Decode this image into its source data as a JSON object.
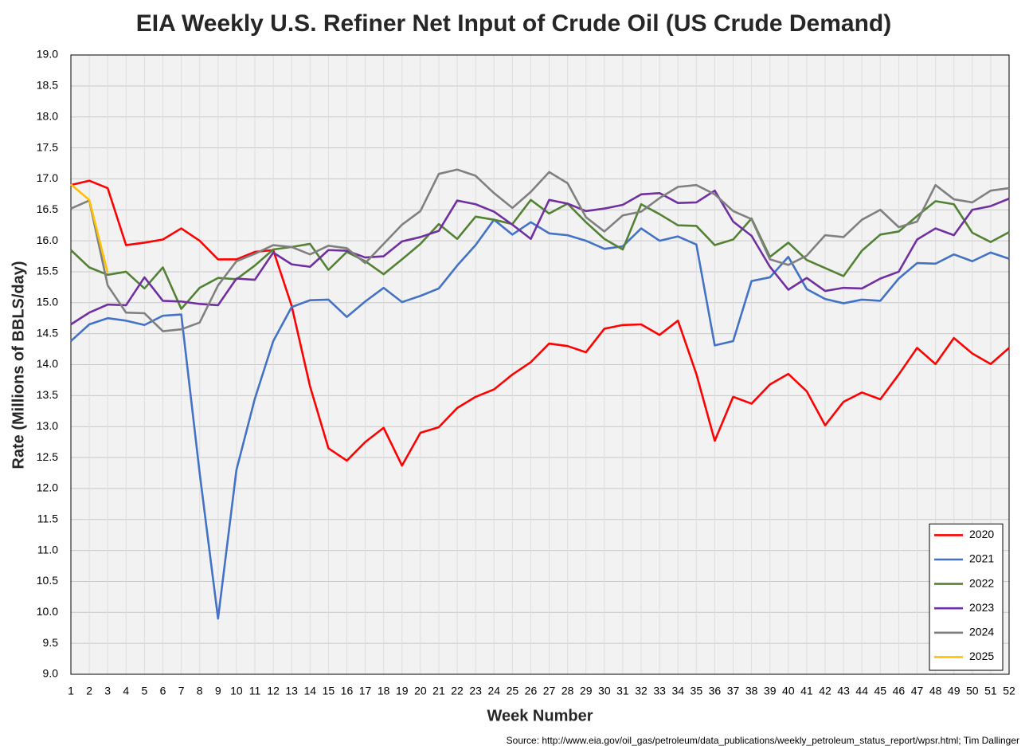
{
  "chart_data": {
    "type": "line",
    "title": "EIA Weekly U.S. Refiner Net Input of Crude Oil (US Crude Demand)",
    "x_label": "Week Number",
    "y_label": "Rate (Millions of BBLS/day)",
    "source": "Source: http://www.eia.gov/oil_gas/petroleum/data_publications/weekly_petroleum_status_report/wpsr.html; Tim Dallinger",
    "x": [
      1,
      2,
      3,
      4,
      5,
      6,
      7,
      8,
      9,
      10,
      11,
      12,
      13,
      14,
      15,
      16,
      17,
      18,
      19,
      20,
      21,
      22,
      23,
      24,
      25,
      26,
      27,
      28,
      29,
      30,
      31,
      32,
      33,
      34,
      35,
      36,
      37,
      38,
      39,
      40,
      41,
      42,
      43,
      44,
      45,
      46,
      47,
      48,
      49,
      50,
      51,
      52
    ],
    "xlim": [
      1,
      52
    ],
    "xticks": [
      1,
      2,
      3,
      4,
      5,
      6,
      7,
      8,
      9,
      10,
      11,
      12,
      13,
      14,
      15,
      16,
      17,
      18,
      19,
      20,
      21,
      22,
      23,
      24,
      25,
      26,
      27,
      28,
      29,
      30,
      31,
      32,
      33,
      34,
      35,
      36,
      37,
      38,
      39,
      40,
      41,
      42,
      43,
      44,
      45,
      46,
      47,
      48,
      49,
      50,
      51,
      52
    ],
    "ylim": [
      9,
      19
    ],
    "yticks": [
      {
        "value": 9,
        "label": "9.0"
      },
      9.5,
      {
        "value": 10,
        "label": "10.0"
      },
      10.5,
      {
        "value": 11,
        "label": "11.0"
      },
      11.5,
      {
        "value": 12,
        "label": "12.0"
      },
      12.5,
      {
        "value": 13,
        "label": "13.0"
      },
      13.5,
      {
        "value": 14,
        "label": "14.0"
      },
      14.5,
      {
        "value": 15,
        "label": "15.0"
      },
      15.5,
      {
        "value": 16,
        "label": "16.0"
      },
      16.5,
      {
        "value": 17,
        "label": "17.0"
      },
      17.5,
      {
        "value": 18,
        "label": "18.0"
      },
      18.5,
      {
        "value": 19,
        "label": "19.0"
      }
    ],
    "grid": true,
    "legend": "lower right",
    "series": [
      {
        "name": "2020",
        "color": "#ff0000",
        "values": [
          16.9,
          16.97,
          16.85,
          15.93,
          15.97,
          16.02,
          16.2,
          16.0,
          15.7,
          15.7,
          15.82,
          15.85,
          14.95,
          13.65,
          12.65,
          12.45,
          12.75,
          12.98,
          12.37,
          12.9,
          12.99,
          13.3,
          13.48,
          13.6,
          13.84,
          14.04,
          14.34,
          14.3,
          14.2,
          14.58,
          14.64,
          14.65,
          14.48,
          14.71,
          13.85,
          12.77,
          13.48,
          13.37,
          13.68,
          13.85,
          13.57,
          13.02,
          13.4,
          13.55,
          13.44,
          13.84,
          14.27,
          14.01,
          14.43,
          14.18,
          14.01,
          14.27
        ]
      },
      {
        "name": "2021",
        "color": "#4472c4",
        "values": [
          14.38,
          14.65,
          14.75,
          14.71,
          14.64,
          14.79,
          14.81,
          12.25,
          9.9,
          12.3,
          13.45,
          14.38,
          14.93,
          15.04,
          15.05,
          14.77,
          15.02,
          15.24,
          15.01,
          15.11,
          15.23,
          15.6,
          15.93,
          16.34,
          16.1,
          16.3,
          16.12,
          16.09,
          16.0,
          15.87,
          15.91,
          16.2,
          16.0,
          16.07,
          15.94,
          14.31,
          14.38,
          15.35,
          15.41,
          15.74,
          15.22,
          15.06,
          14.99,
          15.05,
          15.03,
          15.39,
          15.64,
          15.63,
          15.78,
          15.67,
          15.81,
          15.71
        ]
      },
      {
        "name": "2022",
        "color": "#548235",
        "values": [
          15.85,
          15.57,
          15.45,
          15.5,
          15.23,
          15.57,
          14.9,
          15.24,
          15.4,
          15.38,
          15.6,
          15.86,
          15.9,
          15.95,
          15.53,
          15.82,
          15.67,
          15.46,
          15.7,
          15.95,
          16.27,
          16.03,
          16.39,
          16.34,
          16.27,
          16.66,
          16.44,
          16.6,
          16.3,
          16.03,
          15.86,
          16.59,
          16.43,
          16.25,
          16.24,
          15.93,
          16.02,
          16.36,
          15.74,
          15.97,
          15.69,
          15.56,
          15.43,
          15.84,
          16.1,
          16.15,
          16.4,
          16.64,
          16.59,
          16.13,
          15.98,
          16.14
        ]
      },
      {
        "name": "2023",
        "color": "#7030a0",
        "values": [
          14.65,
          14.84,
          14.97,
          14.96,
          15.41,
          15.03,
          15.02,
          14.98,
          14.96,
          15.39,
          15.37,
          15.81,
          15.62,
          15.58,
          15.85,
          15.84,
          15.73,
          15.75,
          15.99,
          16.06,
          16.16,
          16.65,
          16.59,
          16.47,
          16.26,
          16.03,
          16.66,
          16.6,
          16.48,
          16.52,
          16.58,
          16.75,
          16.77,
          16.61,
          16.62,
          16.81,
          16.31,
          16.08,
          15.58,
          15.21,
          15.4,
          15.19,
          15.24,
          15.23,
          15.39,
          15.5,
          16.02,
          16.2,
          16.09,
          16.5,
          16.56,
          16.68
        ]
      },
      {
        "name": "2024",
        "color": "#808080",
        "values": [
          16.52,
          16.65,
          15.28,
          14.84,
          14.83,
          14.54,
          14.57,
          14.68,
          15.28,
          15.67,
          15.79,
          15.93,
          15.9,
          15.78,
          15.92,
          15.88,
          15.64,
          15.95,
          16.26,
          16.48,
          17.08,
          17.15,
          17.05,
          16.77,
          16.53,
          16.79,
          17.11,
          16.93,
          16.38,
          16.15,
          16.41,
          16.47,
          16.69,
          16.87,
          16.9,
          16.75,
          16.48,
          16.35,
          15.7,
          15.61,
          15.76,
          16.09,
          16.06,
          16.34,
          16.5,
          16.22,
          16.31,
          16.9,
          16.67,
          16.62,
          16.81,
          16.85
        ]
      },
      {
        "name": "2025",
        "color": "#ffc000",
        "values": [
          16.91,
          16.66,
          15.48,
          null,
          null,
          null,
          null,
          null,
          null,
          null,
          null,
          null,
          null,
          null,
          null,
          null,
          null,
          null,
          null,
          null,
          null,
          null,
          null,
          null,
          null,
          null,
          null,
          null,
          null,
          null,
          null,
          null,
          null,
          null,
          null,
          null,
          null,
          null,
          null,
          null,
          null,
          null,
          null,
          null,
          null,
          null,
          null,
          null,
          null,
          null,
          null,
          null
        ]
      }
    ]
  }
}
